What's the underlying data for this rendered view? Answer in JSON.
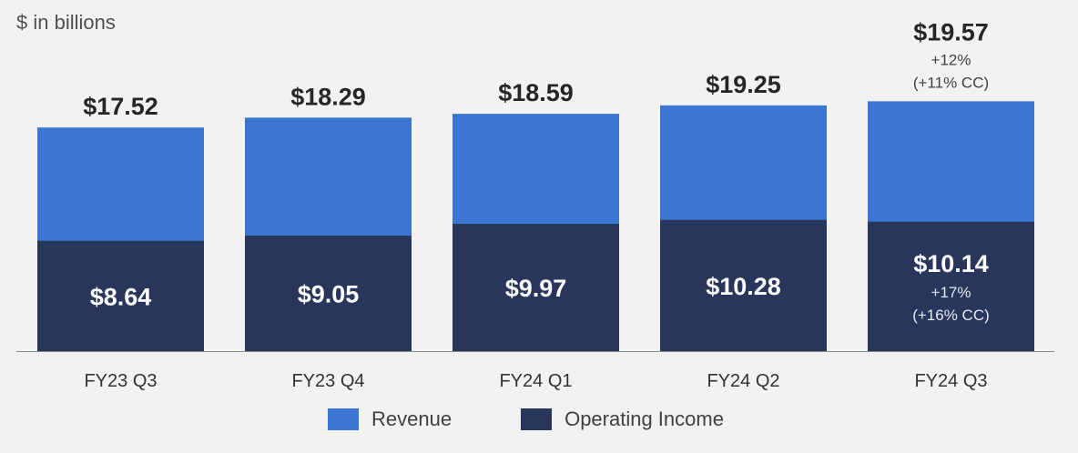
{
  "unit_label": "$ in billions",
  "colors": {
    "revenue": "#3a76d2",
    "operating_income": "#27365a",
    "background": "#f2f2f2",
    "axis": "#8a8a8a"
  },
  "chart_data": {
    "type": "bar",
    "stacking": "overlapped",
    "ylabel": "$ in billions",
    "categories": [
      "FY23 Q3",
      "FY23 Q4",
      "FY24 Q1",
      "FY24 Q2",
      "FY24 Q3"
    ],
    "series": [
      {
        "name": "Revenue",
        "values": [
          17.52,
          18.29,
          18.59,
          19.25,
          19.57
        ],
        "labels": [
          "$17.52",
          "$18.29",
          "$18.59",
          "$19.25",
          "$19.57"
        ],
        "annotation": {
          "index": 4,
          "lines": [
            "+12%",
            "(+11% CC)"
          ]
        }
      },
      {
        "name": "Operating Income",
        "values": [
          8.64,
          9.05,
          9.97,
          10.28,
          10.14
        ],
        "labels": [
          "$8.64",
          "$9.05",
          "$9.97",
          "$10.28",
          "$10.14"
        ],
        "annotation": {
          "index": 4,
          "lines": [
            "+17%",
            "(+16% CC)"
          ]
        }
      }
    ],
    "legend": {
      "position": "bottom",
      "items": [
        "Revenue",
        "Operating Income"
      ]
    },
    "grid": false
  }
}
